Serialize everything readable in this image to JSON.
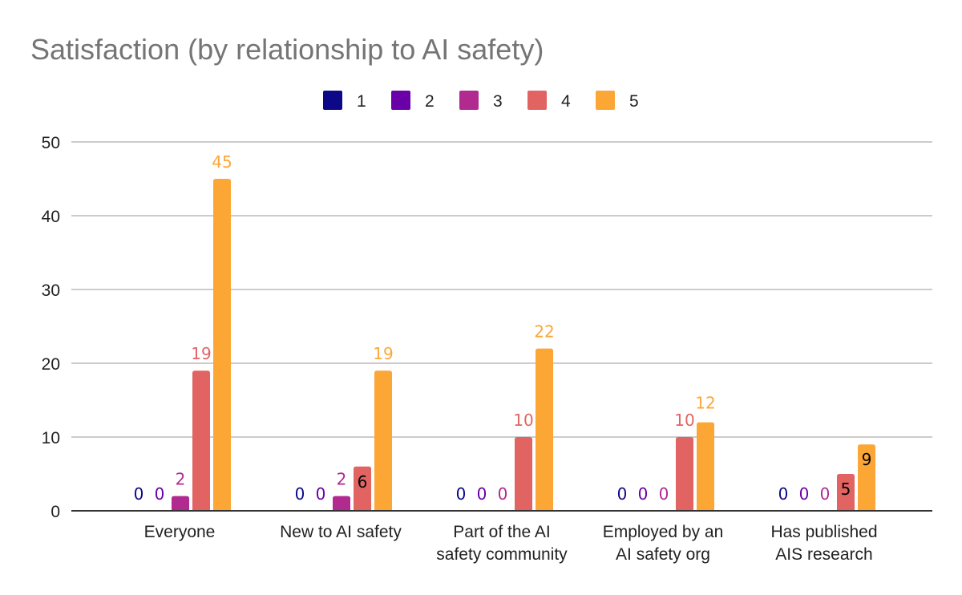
{
  "chart_data": {
    "type": "bar",
    "title": "Satisfaction (by relationship to AI safety)",
    "xlabel": "",
    "ylabel": "",
    "ylim": [
      0,
      50
    ],
    "yticks": [
      0,
      10,
      20,
      30,
      40,
      50
    ],
    "grid": true,
    "legend_position": "top",
    "categories": [
      [
        "Everyone"
      ],
      [
        "New to AI safety"
      ],
      [
        "Part of the AI",
        "safety community"
      ],
      [
        "Employed by an",
        "AI safety org"
      ],
      [
        "Has published",
        "AIS research"
      ]
    ],
    "series": [
      {
        "name": "1",
        "color": "#0d0887",
        "values": [
          0,
          0,
          0,
          0,
          0
        ]
      },
      {
        "name": "2",
        "color": "#6a00a8",
        "values": [
          0,
          0,
          0,
          0,
          0
        ]
      },
      {
        "name": "3",
        "color": "#b12a90",
        "values": [
          2,
          2,
          0,
          0,
          0
        ]
      },
      {
        "name": "4",
        "color": "#e16462",
        "values": [
          19,
          6,
          10,
          10,
          5
        ]
      },
      {
        "name": "5",
        "color": "#fca636",
        "values": [
          45,
          19,
          22,
          12,
          9
        ]
      }
    ],
    "data_labels": true
  }
}
